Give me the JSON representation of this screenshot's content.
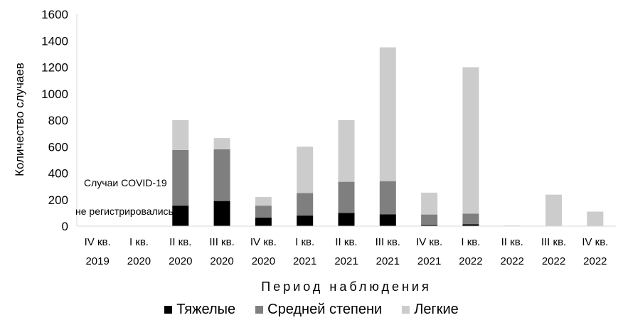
{
  "chart_data": {
    "type": "bar",
    "stacked": true,
    "categories": [
      [
        "IV кв.",
        "2019"
      ],
      [
        "I кв.",
        "2020"
      ],
      [
        "II кв.",
        "2020"
      ],
      [
        "III кв.",
        "2020"
      ],
      [
        "IV кв.",
        "2020"
      ],
      [
        "I кв.",
        "2021"
      ],
      [
        "II кв.",
        "2021"
      ],
      [
        "III кв.",
        "2021"
      ],
      [
        "IV кв.",
        "2021"
      ],
      [
        "I кв.",
        "2022"
      ],
      [
        "II кв.",
        "2022"
      ],
      [
        "III кв.",
        "2022"
      ],
      [
        "IV кв.",
        "2022"
      ]
    ],
    "series": [
      {
        "name": "Тяжелые",
        "color": "#000000",
        "values": [
          0,
          0,
          155,
          190,
          65,
          80,
          100,
          90,
          8,
          15,
          0,
          0,
          0
        ]
      },
      {
        "name": "Средней степени",
        "color": "#7f7f7f",
        "values": [
          0,
          0,
          420,
          390,
          90,
          170,
          235,
          250,
          80,
          80,
          0,
          3,
          0
        ]
      },
      {
        "name": "Легкие",
        "color": "#cccccc",
        "values": [
          0,
          0,
          225,
          85,
          65,
          350,
          465,
          1010,
          165,
          1105,
          5,
          235,
          110
        ]
      }
    ],
    "ylabel": "Количество случаев",
    "xlabel": "Период наблюдения",
    "ylim": [
      0,
      1600
    ],
    "yticks": [
      0,
      200,
      400,
      600,
      800,
      1000,
      1200,
      1400,
      1600
    ],
    "annotation": [
      "Случаи COVID-19",
      "не регистрировались"
    ],
    "grid": false,
    "legend_position": "bottom"
  }
}
